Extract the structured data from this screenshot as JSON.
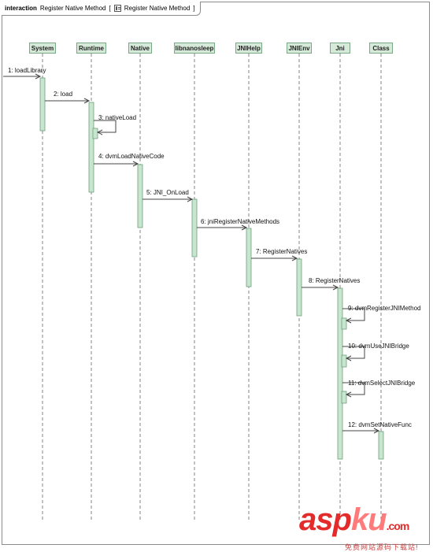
{
  "frame": {
    "keyword": "interaction",
    "name": "Register Native Method",
    "bracket_open": "[",
    "ref_name": "Register Native Method",
    "bracket_close": "]"
  },
  "lifelines": [
    "System",
    "Runtime",
    "Native",
    "libnanosleep",
    "JNIHelp",
    "JNIEnv",
    "Jni",
    "Class"
  ],
  "messages": [
    {
      "label": "1: loadLibrary",
      "from": "external",
      "to": "System"
    },
    {
      "label": "2: load",
      "from": "System",
      "to": "Runtime"
    },
    {
      "label": "3: nativeLoad",
      "from": "Runtime",
      "to": "Runtime",
      "self": true
    },
    {
      "label": "4: dvmLoadNativeCode",
      "from": "Runtime",
      "to": "Native"
    },
    {
      "label": "5: JNI_OnLoad",
      "from": "Native",
      "to": "libnanosleep"
    },
    {
      "label": "6: jniRegisterNativeMethods",
      "from": "libnanosleep",
      "to": "JNIHelp"
    },
    {
      "label": "7: RegisterNatives",
      "from": "JNIHelp",
      "to": "JNIEnv"
    },
    {
      "label": "8: RegisterNatives",
      "from": "JNIEnv",
      "to": "Jni"
    },
    {
      "label": "9: dvmRegisterJNIMethod",
      "from": "Jni",
      "to": "Jni",
      "self": true
    },
    {
      "label": "10: dvmUseJNIBridge",
      "from": "Jni",
      "to": "Jni",
      "self": true
    },
    {
      "label": "11: dvmSelectJNIBridge",
      "from": "Jni",
      "to": "Jni",
      "self": true
    },
    {
      "label": "12: dvmSetNativeFunc",
      "from": "Jni",
      "to": "Class"
    }
  ],
  "colors": {
    "lifeline_fill": "#d5ead8",
    "lifeline_border": "#7aa886",
    "activation_fill": "#c8e6cf",
    "activation_border": "#6f9f7b",
    "line": "#444444",
    "watermark": "#e32b2b"
  },
  "watermark": {
    "brand_main": "asp",
    "brand_mid": "ku",
    "brand_tail": ".com",
    "subtitle": "免费网站源码下载站!"
  }
}
